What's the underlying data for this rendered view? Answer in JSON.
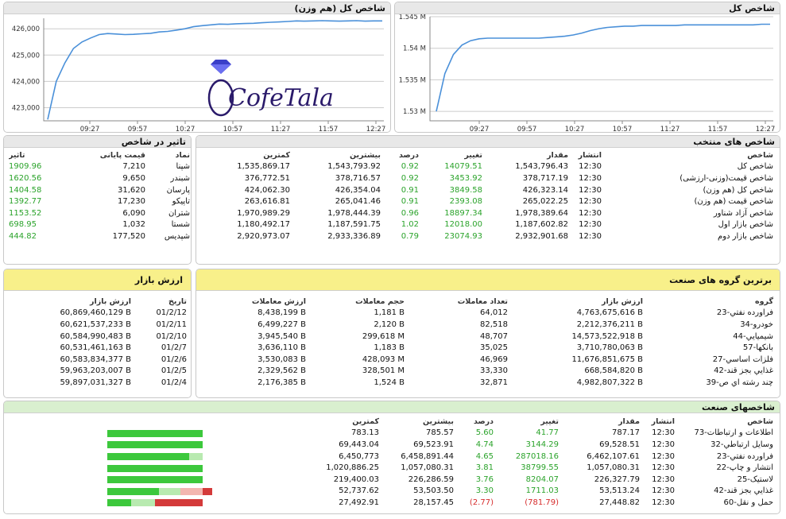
{
  "chart_left": {
    "title": "شاخص کل (هم وزن)",
    "chart_data": {
      "type": "line",
      "title": "شاخص کل (هم وزن)",
      "x_ticks": [
        "09:27",
        "09:57",
        "10:27",
        "10:57",
        "11:27",
        "11:57",
        "12:27"
      ],
      "y_ticks": [
        "423,000",
        "424,000",
        "425,000",
        "426,000"
      ],
      "ylim": [
        422500,
        426400
      ],
      "series": [
        {
          "values": [
            422550,
            424000,
            424700,
            425250,
            425500,
            425650,
            425780,
            425820,
            425800,
            425780,
            425790,
            425810,
            425830,
            425880,
            425900,
            425950,
            426000,
            426080,
            426120,
            426150,
            426180,
            426170,
            426190,
            426200,
            426210,
            426230,
            426250,
            426260,
            426280,
            426300,
            426290,
            426300,
            426310,
            426300,
            426290,
            426300,
            426310,
            426290,
            426300,
            426300
          ]
        }
      ],
      "color": "#4a90d9"
    }
  },
  "chart_right": {
    "title": "شاخص کل",
    "chart_data": {
      "type": "line",
      "title": "شاخص کل",
      "x_ticks": [
        "09:27",
        "09:57",
        "10:27",
        "10:57",
        "11:27",
        "11:57",
        "12:27"
      ],
      "y_ticks": [
        "1.53 M",
        "1.535 M",
        "1.54 M",
        "1.545 M"
      ],
      "ylim": [
        1.5285,
        1.545
      ],
      "series": [
        {
          "values": [
            1.53,
            1.536,
            1.539,
            1.5405,
            1.5412,
            1.5415,
            1.5416,
            1.5416,
            1.5416,
            1.5416,
            1.5416,
            1.5416,
            1.5416,
            1.5417,
            1.5418,
            1.5419,
            1.5421,
            1.5424,
            1.5428,
            1.5431,
            1.5433,
            1.5434,
            1.5435,
            1.5435,
            1.5436,
            1.5436,
            1.5436,
            1.5436,
            1.5436,
            1.5437,
            1.5437,
            1.5437,
            1.5437,
            1.5437,
            1.5437,
            1.5437,
            1.5437,
            1.5437,
            1.5438,
            1.5438
          ]
        }
      ],
      "color": "#4a90d9"
    }
  },
  "logo": {
    "text": "CofeTala"
  },
  "impact": {
    "title": "تاثیر در شاخص",
    "headers": {
      "symbol": "نماد",
      "price": "قیمت پایانی",
      "effect": "تاثیر"
    },
    "rows": [
      {
        "symbol": "شپنا",
        "price": "7,210",
        "effect": "1909.96"
      },
      {
        "symbol": "شبندر",
        "price": "9,650",
        "effect": "1620.56"
      },
      {
        "symbol": "پارسان",
        "price": "31,620",
        "effect": "1404.58"
      },
      {
        "symbol": "تاپیکو",
        "price": "17,230",
        "effect": "1392.77"
      },
      {
        "symbol": "شتران",
        "price": "6,090",
        "effect": "1153.52"
      },
      {
        "symbol": "شستا",
        "price": "1,032",
        "effect": "698.95"
      },
      {
        "symbol": "شپدیس",
        "price": "177,520",
        "effect": "444.82"
      }
    ]
  },
  "selected": {
    "title": "شاخص های منتخب",
    "headers": {
      "index": "شاخص",
      "time": "انتشار",
      "value": "مقدار",
      "change": "تغییر",
      "pct": "درصد",
      "high": "بیشترین",
      "low": "کمترین"
    },
    "rows": [
      {
        "index": "شاخص کل",
        "time": "12:30",
        "value": "1,543,796.43",
        "change": "14079.51",
        "pct": "0.92",
        "high": "1,543,793.92",
        "low": "1,535,869.17"
      },
      {
        "index": "شاخص قیمت(وزنی-ارزشی)",
        "time": "12:30",
        "value": "378,717.19",
        "change": "3453.92",
        "pct": "0.92",
        "high": "378,716.57",
        "low": "376,772.51"
      },
      {
        "index": "شاخص کل (هم وزن)",
        "time": "12:30",
        "value": "426,323.14",
        "change": "3849.58",
        "pct": "0.91",
        "high": "426,354.04",
        "low": "424,062.30"
      },
      {
        "index": "شاخص قیمت (هم وزن)",
        "time": "12:30",
        "value": "265,022.25",
        "change": "2393.08",
        "pct": "0.91",
        "high": "265,041.46",
        "low": "263,616.81"
      },
      {
        "index": "شاخص آزاد شناور",
        "time": "12:30",
        "value": "1,978,389.64",
        "change": "18897.34",
        "pct": "0.96",
        "high": "1,978,444.39",
        "low": "1,970,989.29"
      },
      {
        "index": "شاخص بازار اول",
        "time": "12:30",
        "value": "1,187,602.82",
        "change": "12018.00",
        "pct": "1.02",
        "high": "1,187,591.75",
        "low": "1,180,492.17"
      },
      {
        "index": "شاخص بازار دوم",
        "time": "12:30",
        "value": "2,932,901.68",
        "change": "23074.93",
        "pct": "0.79",
        "high": "2,933,336.89",
        "low": "2,920,973.07"
      }
    ]
  },
  "market_value": {
    "title": "ارزش بازار",
    "headers": {
      "date": "تاریخ",
      "value": "ارزش بازار"
    },
    "rows": [
      {
        "date": "01/2/12",
        "value": "60,869,460,129 B"
      },
      {
        "date": "01/2/11",
        "value": "60,621,537,233 B"
      },
      {
        "date": "01/2/10",
        "value": "60,584,990,483 B"
      },
      {
        "date": "01/2/7",
        "value": "60,531,461,163 B"
      },
      {
        "date": "01/2/6",
        "value": "60,583,834,377 B"
      },
      {
        "date": "01/2/5",
        "value": "59,963,203,007 B"
      },
      {
        "date": "01/2/4",
        "value": "59,897,031,327 B"
      }
    ]
  },
  "top_groups": {
    "title": "برترین گروه های صنعت",
    "headers": {
      "group": "گروه",
      "market": "ارزش بازار",
      "count": "تعداد معاملات",
      "volume": "حجم معاملات",
      "trade_value": "ارزش معاملات"
    },
    "rows": [
      {
        "group": "23-فراورده نفتي",
        "market": "4,763,675,616 B",
        "count": "64,012",
        "volume": "1,181 B",
        "trade_value": "8,438,199 B"
      },
      {
        "group": "34-خودرو",
        "market": "2,212,376,211 B",
        "count": "82,518",
        "volume": "2,120 B",
        "trade_value": "6,499,227 B"
      },
      {
        "group": "44-شیمیایي",
        "market": "14,573,522,918 B",
        "count": "48,707",
        "volume": "299,618 M",
        "trade_value": "3,945,540 B"
      },
      {
        "group": "57-بانکها",
        "market": "3,710,780,063 B",
        "count": "35,025",
        "volume": "1,183 B",
        "trade_value": "3,636,110 B"
      },
      {
        "group": "27-فلزات اساسي",
        "market": "11,676,851,675 B",
        "count": "46,969",
        "volume": "428,093 M",
        "trade_value": "3,530,083 B"
      },
      {
        "group": "42-غذايي بجز قند",
        "market": "668,584,820 B",
        "count": "33,330",
        "volume": "328,501 M",
        "trade_value": "2,329,562 B"
      },
      {
        "group": "39-چند رشته اي ص",
        "market": "4,982,807,322 B",
        "count": "32,871",
        "volume": "1,524 B",
        "trade_value": "2,176,385 B"
      }
    ]
  },
  "industry": {
    "title": "شاخصهای صنعت",
    "headers": {
      "index": "شاخص",
      "time": "انتشار",
      "value": "مقدار",
      "change": "تغییر",
      "pct": "درصد",
      "high": "بیشترین",
      "low": "کمترین"
    },
    "rows": [
      {
        "index": "73-اطلاعات و ارتباطات",
        "time": "12:30",
        "value": "787.17",
        "change": "41.77",
        "pct": "5.60",
        "high": "785.57",
        "low": "783.13",
        "neg": false,
        "bar": {
          "dg": 120,
          "lg": 0,
          "lr": 0,
          "dr": 0
        }
      },
      {
        "index": "32-وسايل ارتباطي",
        "time": "12:30",
        "value": "69,528.51",
        "change": "3144.29",
        "pct": "4.74",
        "high": "69,523.91",
        "low": "69,443.04",
        "neg": false,
        "bar": {
          "dg": 120,
          "lg": 0,
          "lr": 0,
          "dr": 0
        }
      },
      {
        "index": "23-فراورده نفتي",
        "time": "12:30",
        "value": "6,462,107.61",
        "change": "287018.16",
        "pct": "4.65",
        "high": "6,458,891.44",
        "low": "6,450,773",
        "neg": false,
        "bar": {
          "dg": 103,
          "lg": 17,
          "lr": 0,
          "dr": 0
        }
      },
      {
        "index": "22-انتشار و چاپ",
        "time": "12:30",
        "value": "1,057,080.31",
        "change": "38799.55",
        "pct": "3.81",
        "high": "1,057,080.31",
        "low": "1,020,886.25",
        "neg": false,
        "bar": {
          "dg": 120,
          "lg": 0,
          "lr": 0,
          "dr": 0
        }
      },
      {
        "index": "25-لاستیک",
        "time": "12:30",
        "value": "226,327.79",
        "change": "8204.07",
        "pct": "3.76",
        "high": "226,286.59",
        "low": "219,400.03",
        "neg": false,
        "bar": {
          "dg": 120,
          "lg": 0,
          "lr": 0,
          "dr": 0
        }
      },
      {
        "index": "42-غذايي بجز قند",
        "time": "12:30",
        "value": "53,513.24",
        "change": "1711.03",
        "pct": "3.30",
        "high": "53,503.50",
        "low": "52,737.62",
        "neg": false,
        "bar": {
          "dg": 65,
          "lg": 27,
          "lr": 28,
          "dr": 12
        }
      },
      {
        "index": "60-حمل و نقل",
        "time": "12:30",
        "value": "27,448.82",
        "change": "(781.79)",
        "pct": "(2.77)",
        "high": "28,157.45",
        "low": "27,492.91",
        "neg": true,
        "bar": {
          "dg": 30,
          "lg": 30,
          "lr": 0,
          "dr": 60
        }
      }
    ]
  }
}
